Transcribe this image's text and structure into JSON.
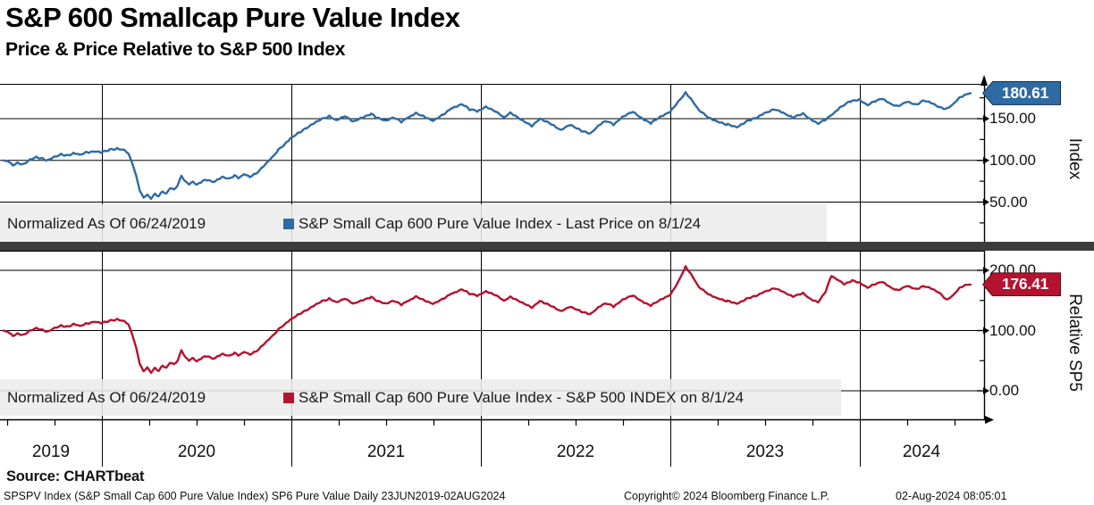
{
  "header": {
    "title": "S&P 600 Smallcap Pure Value Index",
    "subtitle": "Price & Price Relative to S&P 500 Index"
  },
  "legend_top": {
    "normalized_label": "Normalized As Of 06/24/2019",
    "series_label": "S&P Small Cap 600 Pure Value Index - Last Price on 8/1/24",
    "swatch_color": "#2e6ba3"
  },
  "legend_bottom": {
    "normalized_label": "Normalized As Of 06/24/2019",
    "series_label": "S&P Small Cap 600 Pure Value Index - S&P 500 INDEX on 8/1/24",
    "swatch_color": "#b5122f"
  },
  "y_axis_top": {
    "title": "Index",
    "tick_labels": [
      "150.00",
      "100.00",
      "50.00"
    ],
    "badge_label": "180.61",
    "badge_fill": "#2e6ba3",
    "badge_border": "#102e4d"
  },
  "y_axis_bottom": {
    "title": "Relative SP5",
    "tick_labels": [
      "200.00",
      "100.00",
      "0.00"
    ],
    "badge_label": "176.41",
    "badge_fill": "#b5122f",
    "badge_border": "#640a18"
  },
  "x_axis": {
    "year_labels": [
      "2019",
      "2020",
      "2021",
      "2022",
      "2023",
      "2024"
    ]
  },
  "footer": {
    "source": "Source: CHARTbeat",
    "descriptor": "SPSPV Index (S&P Small Cap 600 Pure Value Index) SP6 Pure Value  Daily 23JUN2019-02AUG2024",
    "copyright": "Copyright© 2024 Bloomberg Finance L.P.",
    "timestamp": "02-Aug-2024 08:05:01"
  },
  "chart_data": {
    "type": "line",
    "title": "S&P 600 Smallcap Pure Value Index",
    "subtitle": "Price & Price Relative to S&P 500 Index",
    "normalized_as_of": "06/24/2019",
    "x_unit": "decimal_year",
    "x_range": [
      2019.48,
      2024.585
    ],
    "x_tick_years": [
      2019,
      2020,
      2021,
      2022,
      2023,
      2024
    ],
    "panels": [
      {
        "name": "Index",
        "series_name": "S&P Small Cap 600 Pure Value Index - Last Price",
        "last_value": 180.61,
        "color": "#2e6ba3",
        "y_ticks": [
          150,
          100,
          50
        ],
        "y_minor_ticks": [
          175,
          125,
          75,
          25
        ],
        "ylim": [
          1,
          191
        ],
        "points": [
          [
            2019.48,
            100
          ],
          [
            2019.5,
            99
          ],
          [
            2019.53,
            94
          ],
          [
            2019.56,
            97
          ],
          [
            2019.59,
            95.5
          ],
          [
            2019.62,
            101
          ],
          [
            2019.66,
            104
          ],
          [
            2019.69,
            102
          ],
          [
            2019.72,
            100
          ],
          [
            2019.75,
            104
          ],
          [
            2019.79,
            107
          ],
          [
            2019.82,
            105.5
          ],
          [
            2019.85,
            108
          ],
          [
            2019.88,
            107
          ],
          [
            2019.92,
            110
          ],
          [
            2019.96,
            111
          ],
          [
            2020.0,
            110
          ],
          [
            2020.04,
            112.5
          ],
          [
            2020.08,
            113.5
          ],
          [
            2020.12,
            112
          ],
          [
            2020.14,
            108
          ],
          [
            2020.16,
            97
          ],
          [
            2020.18,
            82
          ],
          [
            2020.2,
            64
          ],
          [
            2020.22,
            55
          ],
          [
            2020.24,
            59
          ],
          [
            2020.26,
            54
          ],
          [
            2020.28,
            60
          ],
          [
            2020.3,
            57
          ],
          [
            2020.32,
            63
          ],
          [
            2020.34,
            60
          ],
          [
            2020.36,
            67
          ],
          [
            2020.38,
            65
          ],
          [
            2020.4,
            70
          ],
          [
            2020.42,
            82
          ],
          [
            2020.44,
            74
          ],
          [
            2020.46,
            72
          ],
          [
            2020.48,
            74
          ],
          [
            2020.5,
            71
          ],
          [
            2020.53,
            75
          ],
          [
            2020.56,
            77
          ],
          [
            2020.58,
            74
          ],
          [
            2020.61,
            76
          ],
          [
            2020.64,
            80
          ],
          [
            2020.67,
            78
          ],
          [
            2020.7,
            82
          ],
          [
            2020.72,
            79
          ],
          [
            2020.75,
            83
          ],
          [
            2020.78,
            80
          ],
          [
            2020.81,
            84
          ],
          [
            2020.84,
            90
          ],
          [
            2020.87,
            97
          ],
          [
            2020.9,
            104
          ],
          [
            2020.93,
            112
          ],
          [
            2020.96,
            118
          ],
          [
            2021.0,
            127
          ],
          [
            2021.04,
            133
          ],
          [
            2021.08,
            139
          ],
          [
            2021.12,
            145
          ],
          [
            2021.16,
            150
          ],
          [
            2021.2,
            153
          ],
          [
            2021.24,
            148
          ],
          [
            2021.28,
            153
          ],
          [
            2021.33,
            146
          ],
          [
            2021.38,
            152
          ],
          [
            2021.42,
            156
          ],
          [
            2021.46,
            150
          ],
          [
            2021.5,
            147
          ],
          [
            2021.54,
            151
          ],
          [
            2021.58,
            146
          ],
          [
            2021.62,
            152
          ],
          [
            2021.66,
            157
          ],
          [
            2021.7,
            153
          ],
          [
            2021.75,
            148
          ],
          [
            2021.8,
            155
          ],
          [
            2021.85,
            163
          ],
          [
            2021.9,
            167
          ],
          [
            2021.94,
            161
          ],
          [
            2021.98,
            159
          ],
          [
            2022.03,
            164
          ],
          [
            2022.08,
            158
          ],
          [
            2022.12,
            151
          ],
          [
            2022.16,
            157
          ],
          [
            2022.22,
            147
          ],
          [
            2022.27,
            141
          ],
          [
            2022.31,
            150
          ],
          [
            2022.35,
            146
          ],
          [
            2022.42,
            137
          ],
          [
            2022.47,
            143
          ],
          [
            2022.53,
            135
          ],
          [
            2022.58,
            132
          ],
          [
            2022.62,
            141
          ],
          [
            2022.66,
            147
          ],
          [
            2022.7,
            143
          ],
          [
            2022.75,
            152
          ],
          [
            2022.8,
            158
          ],
          [
            2022.85,
            150
          ],
          [
            2022.9,
            145
          ],
          [
            2022.95,
            153
          ],
          [
            2023.0,
            159
          ],
          [
            2023.04,
            170
          ],
          [
            2023.08,
            181
          ],
          [
            2023.11,
            173
          ],
          [
            2023.15,
            160
          ],
          [
            2023.2,
            151
          ],
          [
            2023.25,
            146
          ],
          [
            2023.3,
            143
          ],
          [
            2023.35,
            140
          ],
          [
            2023.4,
            147
          ],
          [
            2023.45,
            151
          ],
          [
            2023.5,
            157
          ],
          [
            2023.55,
            161
          ],
          [
            2023.6,
            156
          ],
          [
            2023.65,
            151
          ],
          [
            2023.7,
            156
          ],
          [
            2023.74,
            149
          ],
          [
            2023.78,
            144
          ],
          [
            2023.82,
            149
          ],
          [
            2023.86,
            156
          ],
          [
            2023.9,
            164
          ],
          [
            2023.95,
            171
          ],
          [
            2024.0,
            172
          ],
          [
            2024.04,
            166
          ],
          [
            2024.08,
            171
          ],
          [
            2024.12,
            174
          ],
          [
            2024.16,
            168
          ],
          [
            2024.2,
            165
          ],
          [
            2024.25,
            171
          ],
          [
            2024.3,
            167
          ],
          [
            2024.34,
            172
          ],
          [
            2024.38,
            169
          ],
          [
            2024.42,
            164
          ],
          [
            2024.46,
            162
          ],
          [
            2024.5,
            169
          ],
          [
            2024.53,
            176
          ],
          [
            2024.56,
            179
          ],
          [
            2024.585,
            180.61
          ]
        ]
      },
      {
        "name": "Relative SP5",
        "series_name": "S&P Small Cap 600 Pure Value Index - S&P 500 INDEX",
        "last_value": 176.41,
        "color": "#b5122f",
        "y_ticks": [
          200,
          100,
          0
        ],
        "y_minor_ticks": [
          150,
          50
        ],
        "ylim": [
          -20,
          230
        ],
        "points": [
          [
            2019.48,
            100
          ],
          [
            2019.5,
            98
          ],
          [
            2019.53,
            91
          ],
          [
            2019.56,
            95
          ],
          [
            2019.59,
            93
          ],
          [
            2019.62,
            100
          ],
          [
            2019.66,
            104
          ],
          [
            2019.69,
            101
          ],
          [
            2019.72,
            98
          ],
          [
            2019.75,
            104
          ],
          [
            2019.79,
            108
          ],
          [
            2019.82,
            106
          ],
          [
            2019.85,
            110
          ],
          [
            2019.88,
            108
          ],
          [
            2019.92,
            112
          ],
          [
            2019.96,
            115
          ],
          [
            2020.0,
            113
          ],
          [
            2020.04,
            116
          ],
          [
            2020.08,
            118
          ],
          [
            2020.12,
            115
          ],
          [
            2020.14,
            110
          ],
          [
            2020.16,
            94
          ],
          [
            2020.18,
            72
          ],
          [
            2020.2,
            45
          ],
          [
            2020.22,
            32
          ],
          [
            2020.24,
            39
          ],
          [
            2020.26,
            30
          ],
          [
            2020.28,
            38
          ],
          [
            2020.3,
            33
          ],
          [
            2020.32,
            42
          ],
          [
            2020.34,
            38
          ],
          [
            2020.36,
            47
          ],
          [
            2020.38,
            44
          ],
          [
            2020.4,
            50
          ],
          [
            2020.42,
            68
          ],
          [
            2020.44,
            55
          ],
          [
            2020.46,
            51
          ],
          [
            2020.48,
            54
          ],
          [
            2020.5,
            49
          ],
          [
            2020.53,
            55
          ],
          [
            2020.56,
            58
          ],
          [
            2020.58,
            53
          ],
          [
            2020.61,
            56
          ],
          [
            2020.64,
            61
          ],
          [
            2020.67,
            58
          ],
          [
            2020.7,
            63
          ],
          [
            2020.72,
            59
          ],
          [
            2020.75,
            64
          ],
          [
            2020.78,
            60
          ],
          [
            2020.81,
            65
          ],
          [
            2020.84,
            73
          ],
          [
            2020.87,
            82
          ],
          [
            2020.9,
            91
          ],
          [
            2020.93,
            101
          ],
          [
            2020.96,
            109
          ],
          [
            2021.0,
            119
          ],
          [
            2021.04,
            127
          ],
          [
            2021.08,
            134
          ],
          [
            2021.12,
            142
          ],
          [
            2021.16,
            149
          ],
          [
            2021.2,
            153
          ],
          [
            2021.24,
            147
          ],
          [
            2021.28,
            153
          ],
          [
            2021.33,
            144
          ],
          [
            2021.38,
            151
          ],
          [
            2021.42,
            156
          ],
          [
            2021.46,
            148
          ],
          [
            2021.5,
            144
          ],
          [
            2021.54,
            149
          ],
          [
            2021.58,
            143
          ],
          [
            2021.62,
            150
          ],
          [
            2021.66,
            157
          ],
          [
            2021.7,
            151
          ],
          [
            2021.75,
            145
          ],
          [
            2021.8,
            153
          ],
          [
            2021.85,
            162
          ],
          [
            2021.9,
            168
          ],
          [
            2021.94,
            161
          ],
          [
            2021.98,
            158
          ],
          [
            2022.03,
            165
          ],
          [
            2022.08,
            158
          ],
          [
            2022.12,
            149
          ],
          [
            2022.16,
            156
          ],
          [
            2022.22,
            145
          ],
          [
            2022.27,
            138
          ],
          [
            2022.31,
            149
          ],
          [
            2022.35,
            144
          ],
          [
            2022.42,
            133
          ],
          [
            2022.47,
            140
          ],
          [
            2022.53,
            131
          ],
          [
            2022.58,
            127
          ],
          [
            2022.62,
            138
          ],
          [
            2022.66,
            145
          ],
          [
            2022.7,
            140
          ],
          [
            2022.75,
            151
          ],
          [
            2022.8,
            158
          ],
          [
            2022.85,
            148
          ],
          [
            2022.9,
            142
          ],
          [
            2022.95,
            152
          ],
          [
            2023.0,
            160
          ],
          [
            2023.04,
            180
          ],
          [
            2023.08,
            206
          ],
          [
            2023.11,
            193
          ],
          [
            2023.15,
            172
          ],
          [
            2023.2,
            160
          ],
          [
            2023.25,
            153
          ],
          [
            2023.3,
            149
          ],
          [
            2023.35,
            145
          ],
          [
            2023.4,
            153
          ],
          [
            2023.45,
            158
          ],
          [
            2023.5,
            165
          ],
          [
            2023.55,
            170
          ],
          [
            2023.6,
            163
          ],
          [
            2023.65,
            156
          ],
          [
            2023.7,
            162
          ],
          [
            2023.74,
            152
          ],
          [
            2023.78,
            147
          ],
          [
            2023.82,
            165
          ],
          [
            2023.85,
            192
          ],
          [
            2023.88,
            185
          ],
          [
            2023.92,
            177
          ],
          [
            2023.96,
            183
          ],
          [
            2024.0,
            179
          ],
          [
            2024.04,
            171
          ],
          [
            2024.08,
            177
          ],
          [
            2024.12,
            181
          ],
          [
            2024.16,
            172
          ],
          [
            2024.2,
            167
          ],
          [
            2024.25,
            175
          ],
          [
            2024.3,
            169
          ],
          [
            2024.34,
            174
          ],
          [
            2024.38,
            170
          ],
          [
            2024.42,
            163
          ],
          [
            2024.46,
            151
          ],
          [
            2024.5,
            161
          ],
          [
            2024.53,
            172
          ],
          [
            2024.56,
            176
          ],
          [
            2024.585,
            176.41
          ]
        ]
      }
    ]
  }
}
